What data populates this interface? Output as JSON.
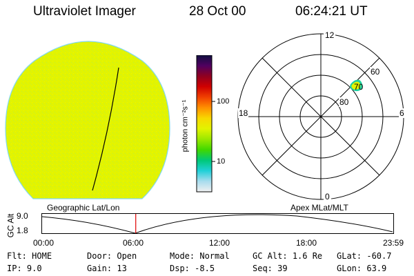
{
  "header": {
    "instrument": "Ultraviolet Imager",
    "date": "28 Oct 00",
    "time": "06:24:21 UT"
  },
  "colors": {
    "image_fill": "#e2f400",
    "image_edge": "#7fd8f0",
    "trace": "#000000",
    "cursor": "#e00000"
  },
  "colorbar": {
    "unit_label": "photon cm⁻²s⁻¹",
    "ticks": [
      "100",
      "10"
    ],
    "stops": [
      "#f0f0f0",
      "#a8dcee",
      "#20d0d8",
      "#00c878",
      "#40d800",
      "#9ae800",
      "#e2f400",
      "#f8d800",
      "#ff9000",
      "#f04000",
      "#d00000",
      "#900020",
      "#500060",
      "#101040"
    ]
  },
  "polar": {
    "mlt_labels": {
      "top": "12",
      "right": "6",
      "bottom": "0",
      "left": "18"
    },
    "lat_labels": [
      "60",
      "70",
      "80"
    ]
  },
  "altitude_plot": {
    "left_label": "Geographic Lat/Lon",
    "right_label": "Apex MLat/MLT",
    "axis_label": "GC Alt",
    "y_ticks": [
      "9.0",
      "1.8"
    ],
    "x_ticks": [
      "00:00",
      "06:00",
      "12:00",
      "18:00",
      "23:59"
    ],
    "current_time_hours": 6.4
  },
  "footer": {
    "filter": {
      "label": "Flt:",
      "value": "HOME"
    },
    "ip": {
      "label": "IP:",
      "value": "9.0"
    },
    "door": {
      "label": "Door:",
      "value": "Open"
    },
    "gain": {
      "label": "Gain:",
      "value": "13"
    },
    "mode": {
      "label": "Mode:",
      "value": "Normal"
    },
    "dsp": {
      "label": "Dsp:",
      "value": "-8.5"
    },
    "gc_alt": {
      "label": "GC Alt:",
      "value": "1.6 Re"
    },
    "seq": {
      "label": "Seq:",
      "value": "39"
    },
    "glat": {
      "label": "GLat:",
      "value": "-60.7"
    },
    "glon": {
      "label": "GLon:",
      "value": "63.9"
    }
  }
}
